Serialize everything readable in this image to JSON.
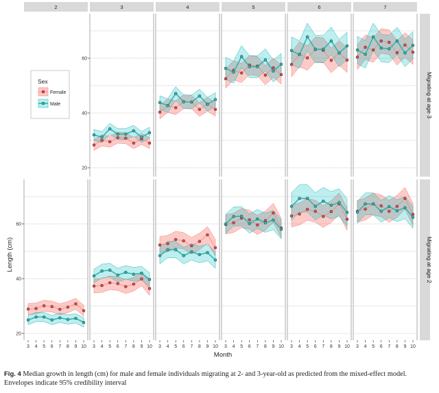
{
  "chart_data": {
    "type": "line",
    "xlabel": "Month",
    "ylabel": "Length (cm)",
    "x": [
      3,
      4,
      5,
      6,
      7,
      8,
      9,
      10
    ],
    "xticks": [
      "3",
      "4",
      "5",
      "6",
      "7",
      "8",
      "9",
      "10"
    ],
    "yticks": [
      20,
      40,
      60
    ],
    "ylim": [
      17.5,
      75.5
    ],
    "grid": true,
    "columns": [
      "2",
      "3",
      "4",
      "5",
      "6",
      "7"
    ],
    "legend": {
      "title": "Sex",
      "placement": "inside top-left (empty panel)",
      "entries": [
        "Female",
        "Male"
      ]
    },
    "colors": {
      "Female": "#F8766D",
      "Male": "#00BFC4"
    },
    "band": "95% credibility interval",
    "rows": [
      {
        "label": "Migrating at age 3",
        "panels": {
          "2": null,
          "3": {
            "Female": {
              "median": [
                28.3,
                30,
                29.5,
                31,
                30.8,
                29,
                30.5,
                29
              ],
              "lower": [
                26.3,
                28,
                27.5,
                29,
                28.8,
                27,
                28.5,
                27
              ],
              "upper": [
                30.3,
                32,
                31.5,
                33,
                32.8,
                31,
                32.5,
                31
              ]
            },
            "Male": {
              "median": [
                32,
                31.2,
                34.2,
                32.3,
                32.3,
                33.5,
                31.2,
                32.8
              ],
              "lower": [
                30,
                29.2,
                32.2,
                30.3,
                30.3,
                31.5,
                29.2,
                30.8
              ],
              "upper": [
                34,
                33.2,
                36.2,
                34.3,
                34.3,
                35.5,
                33.2,
                34.8
              ]
            }
          },
          "4": {
            "Female": {
              "median": [
                40.3,
                42.7,
                41.9,
                44.1,
                44,
                41.3,
                43.2,
                41.3
              ],
              "lower": [
                37.8,
                40.2,
                39.4,
                41.6,
                41.5,
                38.8,
                40.7,
                38.8
              ],
              "upper": [
                42.8,
                45.2,
                44.4,
                46.6,
                46.5,
                43.8,
                45.7,
                43.8
              ]
            },
            "Male": {
              "median": [
                43.8,
                42.7,
                47.1,
                44.1,
                44,
                46.2,
                43.2,
                44.9
              ],
              "lower": [
                41.3,
                40.2,
                44.6,
                41.6,
                41.5,
                43.7,
                40.7,
                42.4
              ],
              "upper": [
                46.3,
                45.2,
                49.6,
                46.6,
                46.5,
                48.7,
                45.7,
                47.4
              ]
            }
          },
          "5": {
            "Female": {
              "median": [
                52.5,
                55.6,
                54.6,
                57.5,
                57.1,
                53.8,
                56.5,
                54
              ],
              "lower": [
                49,
                52.1,
                51.1,
                54,
                53.6,
                50.3,
                53,
                50.5
              ],
              "upper": [
                56,
                59.1,
                58.1,
                61,
                60.6,
                57.3,
                60,
                57.5
              ]
            },
            "Male": {
              "median": [
                56.3,
                54.9,
                60.6,
                56.9,
                56.9,
                59.4,
                55.3,
                57.8
              ],
              "lower": [
                52.3,
                50.9,
                56.6,
                52.9,
                52.9,
                55.4,
                51.3,
                53.8
              ],
              "upper": [
                60.3,
                58.9,
                64.6,
                60.9,
                60.9,
                63.4,
                59.3,
                61.8
              ]
            }
          },
          "6": {
            "Female": {
              "median": [
                57.7,
                61.4,
                60.1,
                63.2,
                62.9,
                59.2,
                61.9,
                59.3
              ],
              "lower": [
                53.2,
                56.9,
                55.6,
                58.7,
                58.4,
                54.7,
                57.4,
                54.8
              ],
              "upper": [
                62.2,
                65.9,
                64.6,
                67.7,
                67.4,
                63.7,
                66.4,
                63.8
              ]
            },
            "Male": {
              "median": [
                62.8,
                61.3,
                67.8,
                63.3,
                63.3,
                66.3,
                61.9,
                64.5
              ],
              "lower": [
                57.8,
                56.3,
                62.8,
                58.3,
                58.3,
                61.3,
                56.9,
                59.5
              ],
              "upper": [
                67.8,
                66.3,
                72.8,
                68.3,
                68.3,
                71.3,
                66.9,
                69.5
              ]
            }
          },
          "7": {
            "Female": {
              "median": [
                60.4,
                64,
                63,
                66.3,
                65.8,
                62,
                64.8,
                62.2
              ],
              "lower": [
                55.9,
                59.5,
                58.5,
                61.8,
                61.3,
                57.5,
                60.3,
                57.7
              ],
              "upper": [
                64.9,
                68.5,
                67.5,
                70.8,
                70.3,
                66.5,
                69.3,
                66.7
              ]
            },
            "Male": {
              "median": [
                63,
                61.4,
                67.8,
                63.7,
                63.4,
                66.3,
                61.9,
                64.7
              ],
              "lower": [
                58,
                56.4,
                62.8,
                58.7,
                58.4,
                61.3,
                56.9,
                59.7
              ],
              "upper": [
                68,
                66.4,
                72.8,
                68.7,
                68.4,
                71.3,
                66.9,
                69.7
              ]
            }
          }
        }
      },
      {
        "label": "Migrating at age 2",
        "panels": {
          "2": {
            "Female": {
              "median": [
                28.9,
                29.1,
                30.1,
                29.8,
                28.8,
                29.6,
                30.8,
                28.3
              ],
              "lower": [
                26.9,
                27.1,
                28.1,
                27.8,
                26.8,
                27.6,
                28.8,
                26.3
              ],
              "upper": [
                30.9,
                31.1,
                32.1,
                31.8,
                30.8,
                31.6,
                32.8,
                30.3
              ]
            },
            "Male": {
              "median": [
                24.9,
                26,
                26,
                24.9,
                25.7,
                25.1,
                25.5,
                24
              ],
              "lower": [
                23.2,
                24.3,
                24.3,
                23.2,
                24,
                23.4,
                23.8,
                22.3
              ],
              "upper": [
                26.6,
                27.7,
                27.7,
                26.6,
                27.4,
                26.8,
                27.2,
                25.7
              ]
            }
          },
          "3": {
            "Female": {
              "median": [
                37.3,
                37.5,
                38.5,
                38.2,
                37.1,
                38,
                39.9,
                36.4
              ],
              "lower": [
                34.8,
                35,
                36,
                35.7,
                34.6,
                35.5,
                37.4,
                33.9
              ],
              "upper": [
                39.8,
                40,
                41,
                40.7,
                39.6,
                40.5,
                42.4,
                38.9
              ]
            },
            "Male": {
              "median": [
                41,
                42.8,
                43.1,
                41.3,
                42.3,
                41.6,
                42,
                39.7
              ],
              "lower": [
                38.5,
                40.3,
                40.6,
                38.8,
                39.8,
                39.1,
                39.5,
                37.2
              ],
              "upper": [
                43.5,
                45.3,
                45.6,
                43.8,
                44.8,
                44.1,
                44.5,
                42.2
              ]
            }
          },
          "4": {
            "Female": {
              "median": [
                52.3,
                52.8,
                54.3,
                53.8,
                52,
                53.6,
                56,
                51.3
              ],
              "lower": [
                49.3,
                49.8,
                51.3,
                50.8,
                49,
                50.6,
                53,
                48.3
              ],
              "upper": [
                55.3,
                55.8,
                57.3,
                56.8,
                55,
                56.6,
                59,
                54.3
              ]
            },
            "Male": {
              "median": [
                48.4,
                50.6,
                50.6,
                48.4,
                49.8,
                48.8,
                49.5,
                46.8
              ],
              "lower": [
                45.4,
                47.6,
                47.6,
                45.4,
                46.8,
                45.8,
                46.5,
                43.8
              ],
              "upper": [
                51.4,
                53.6,
                53.6,
                51.4,
                52.8,
                51.8,
                52.5,
                49.8
              ]
            }
          },
          "5": {
            "Female": {
              "median": [
                59.8,
                60.4,
                62.1,
                61.5,
                59.6,
                61.2,
                64,
                58.5
              ],
              "lower": [
                56.3,
                56.9,
                58.6,
                58,
                56.1,
                57.7,
                60.5,
                55
              ],
              "upper": [
                63.3,
                63.9,
                65.6,
                65,
                63.1,
                64.7,
                67.5,
                62
              ]
            },
            "Male": {
              "median": [
                60,
                62.7,
                62.8,
                60.1,
                61.8,
                60.4,
                61.4,
                58
              ],
              "lower": [
                56.5,
                59.2,
                59.3,
                56.6,
                58.3,
                56.9,
                57.9,
                54.5
              ],
              "upper": [
                63.5,
                66.2,
                66.3,
                63.6,
                65.3,
                63.9,
                64.9,
                61.5
              ]
            }
          },
          "6": {
            "Female": {
              "median": [
                62.9,
                63.6,
                65.3,
                64.6,
                62.7,
                64.5,
                67.3,
                61.7
              ],
              "lower": [
                58.9,
                59.6,
                61.3,
                60.6,
                58.7,
                60.5,
                63.3,
                57.7
              ],
              "upper": [
                66.9,
                67.6,
                69.3,
                68.6,
                66.7,
                68.5,
                71.3,
                65.7
              ]
            },
            "Male": {
              "median": [
                66.4,
                69.3,
                69.3,
                66.4,
                68.3,
                66.8,
                67.8,
                64.2
              ],
              "lower": [
                61.4,
                64.3,
                64.3,
                61.4,
                63.3,
                61.8,
                62.8,
                59.2
              ],
              "upper": [
                71.4,
                74.3,
                74.3,
                71.4,
                73.3,
                71.8,
                72.8,
                69.2
              ]
            }
          },
          "7": {
            "Female": {
              "median": [
                64.6,
                65.4,
                67.3,
                66.6,
                64.6,
                66.4,
                69.3,
                63.5
              ],
              "lower": [
                60.6,
                61.4,
                63.3,
                62.6,
                60.6,
                62.4,
                65.3,
                59.5
              ],
              "upper": [
                68.6,
                69.4,
                71.3,
                70.6,
                68.6,
                70.4,
                73.3,
                67.5
              ]
            },
            "Male": {
              "median": [
                64.3,
                67.3,
                67.3,
                64.6,
                66.3,
                64.8,
                65.9,
                62.4
              ],
              "lower": [
                60.3,
                63.3,
                63.3,
                60.6,
                62.3,
                60.8,
                61.9,
                58.4
              ],
              "upper": [
                68.3,
                71.3,
                71.3,
                68.6,
                70.3,
                68.8,
                69.9,
                66.4
              ]
            }
          }
        }
      }
    ]
  },
  "caption": {
    "label": "Fig. 4",
    "text": "Median growth in length (cm) for male and female individuals migrating at 2- and 3-year-old as predicted from the mixed-effect model. Envelopes indicate 95% credibility interval"
  }
}
